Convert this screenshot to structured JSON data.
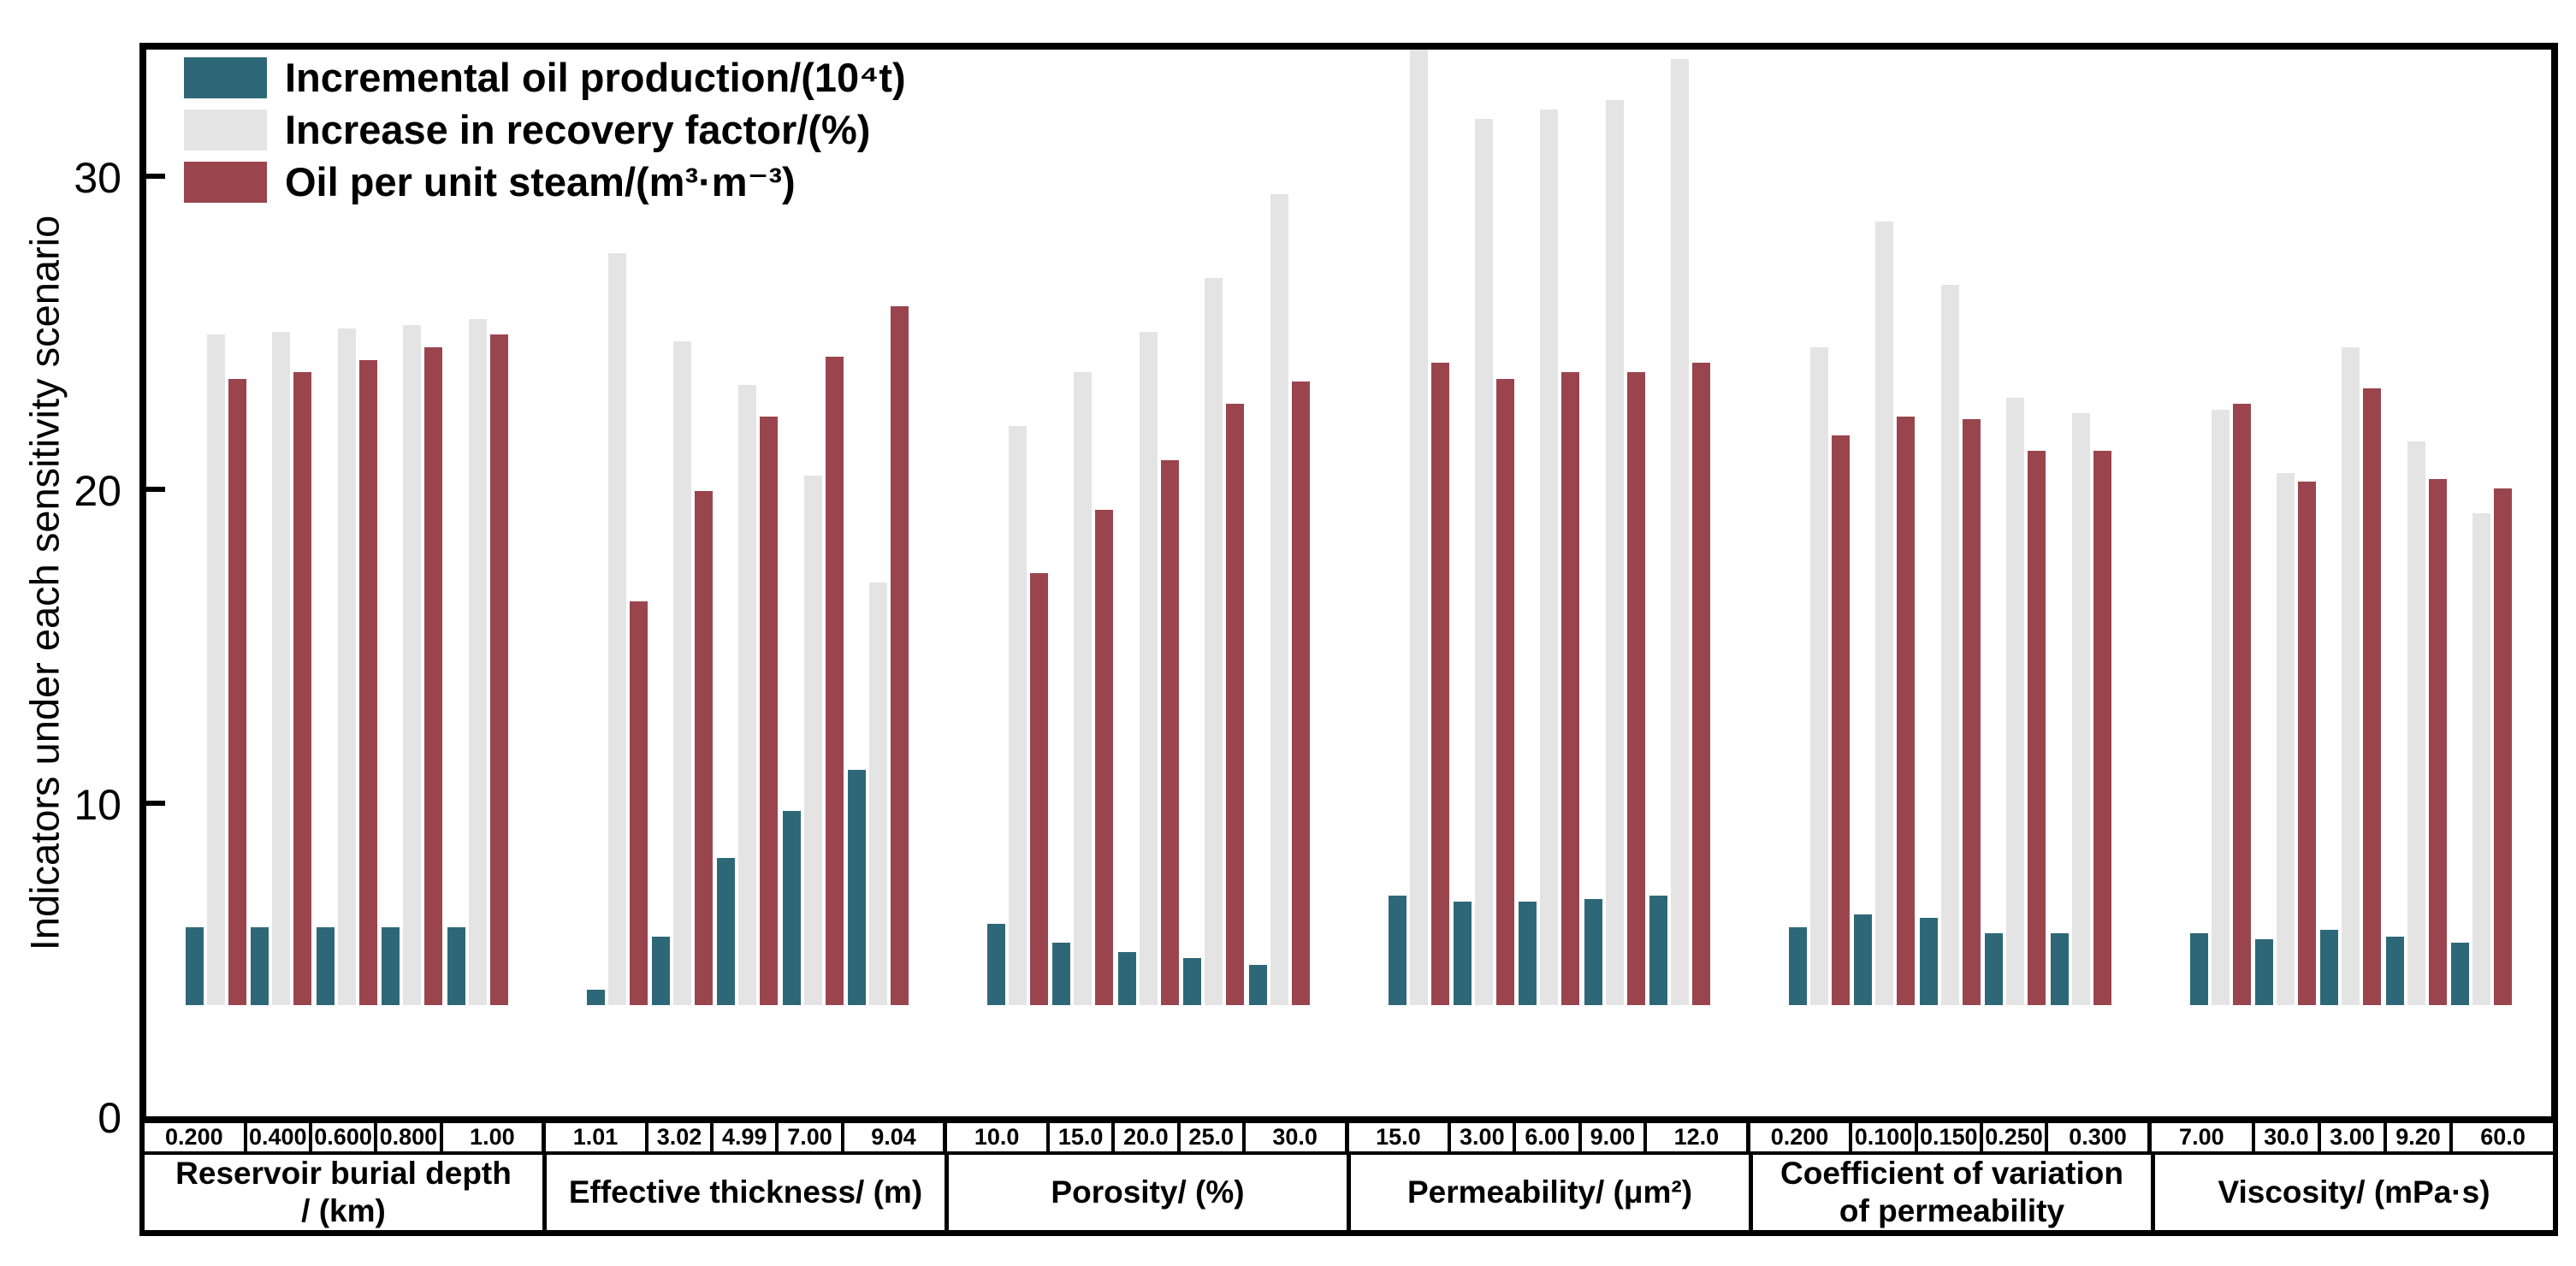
{
  "chart_data": {
    "type": "bar",
    "y_axis": {
      "label": "Indicators under each sensitivity scenario",
      "ticks": [
        0,
        10,
        20,
        30
      ],
      "ylim": [
        0,
        34.05
      ],
      "grid": false
    },
    "legend_position": "top-left-inside",
    "series": [
      {
        "name": "Incremental oil production/(10⁴t)",
        "color": "#2E6878"
      },
      {
        "name": "Increase in recovery factor/(%)",
        "color": "#E4E4E4"
      },
      {
        "name": "Oil per unit steam/(m³·m⁻³)",
        "color": "#9A454E"
      }
    ],
    "groups": [
      {
        "label": "Reservoir burial depth\n/ (km)",
        "clusters": [
          {
            "label": "0.200",
            "values": [
              2.5,
              21.4,
              20.0
            ]
          },
          {
            "label": "0.400",
            "values": [
              2.5,
              21.5,
              20.2
            ]
          },
          {
            "label": "0.600",
            "values": [
              2.5,
              21.6,
              20.6
            ]
          },
          {
            "label": "0.800",
            "values": [
              2.5,
              21.7,
              21.0
            ]
          },
          {
            "label": "1.00",
            "values": [
              2.5,
              21.9,
              21.4
            ]
          }
        ]
      },
      {
        "label": "Effective thickness/ (m)",
        "clusters": [
          {
            "label": "1.01",
            "values": [
              0.5,
              24.0,
              12.9
            ]
          },
          {
            "label": "3.02",
            "values": [
              2.2,
              21.2,
              16.4
            ]
          },
          {
            "label": "4.99",
            "values": [
              4.7,
              19.8,
              18.8
            ]
          },
          {
            "label": "7.00",
            "values": [
              6.2,
              16.9,
              20.7
            ]
          },
          {
            "label": "9.04",
            "values": [
              7.5,
              13.5,
              22.3
            ]
          }
        ]
      },
      {
        "label": "Porosity/ (%)",
        "clusters": [
          {
            "label": "10.0",
            "values": [
              2.6,
              18.5,
              13.8
            ]
          },
          {
            "label": "15.0",
            "values": [
              2.0,
              20.2,
              15.8
            ]
          },
          {
            "label": "20.0",
            "values": [
              1.7,
              21.5,
              17.4
            ]
          },
          {
            "label": "25.0",
            "values": [
              1.5,
              23.2,
              19.2
            ]
          },
          {
            "label": "30.0",
            "values": [
              1.3,
              25.9,
              19.9
            ]
          }
        ]
      },
      {
        "label": "Permeability/ (μm²)",
        "clusters": [
          {
            "label": "15.0",
            "values": [
              3.5,
              30.5,
              20.5
            ]
          },
          {
            "label": "3.00",
            "values": [
              3.3,
              28.3,
              20.0
            ]
          },
          {
            "label": "6.00",
            "values": [
              3.3,
              28.6,
              20.2
            ]
          },
          {
            "label": "9.00",
            "values": [
              3.4,
              28.9,
              20.2
            ]
          },
          {
            "label": "12.0",
            "values": [
              3.5,
              30.2,
              20.5
            ]
          }
        ]
      },
      {
        "label": "Coefficient of variation\nof permeability",
        "clusters": [
          {
            "label": "0.200",
            "values": [
              2.5,
              21.0,
              18.2
            ]
          },
          {
            "label": "0.100",
            "values": [
              2.9,
              25.0,
              18.8
            ]
          },
          {
            "label": "0.150",
            "values": [
              2.8,
              23.0,
              18.7
            ]
          },
          {
            "label": "0.250",
            "values": [
              2.3,
              19.4,
              17.7
            ]
          },
          {
            "label": "0.300",
            "values": [
              2.3,
              18.9,
              17.7
            ]
          }
        ]
      },
      {
        "label": "Viscosity/ (mPa·s)",
        "clusters": [
          {
            "label": "7.00",
            "values": [
              2.3,
              19.0,
              19.2
            ]
          },
          {
            "label": "30.0",
            "values": [
              2.1,
              17.0,
              16.7
            ]
          },
          {
            "label": "3.00",
            "values": [
              2.4,
              21.0,
              19.7
            ]
          },
          {
            "label": "9.20",
            "values": [
              2.2,
              18.0,
              16.8
            ]
          },
          {
            "label": "60.0",
            "values": [
              2.0,
              15.7,
              16.5
            ]
          }
        ]
      }
    ]
  }
}
